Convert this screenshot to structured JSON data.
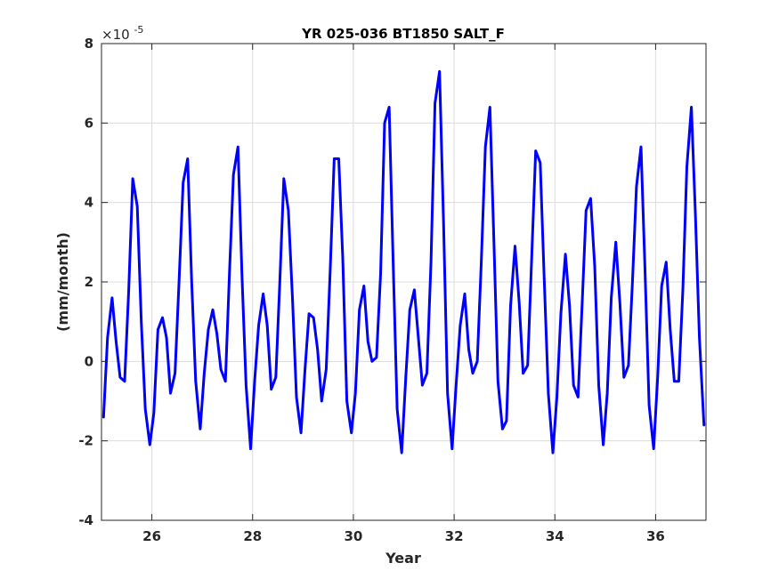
{
  "chart_data": {
    "type": "line",
    "title": "YR 025-036 BT1850 SALT_F",
    "xlabel": "Year",
    "ylabel": "(mm/month)",
    "y_exponent_base": "×10",
    "y_exponent_power": "-5",
    "xlim": [
      25,
      37
    ],
    "ylim": [
      -4,
      8
    ],
    "x_ticks": [
      26,
      28,
      30,
      32,
      34,
      36
    ],
    "x_tick_labels": [
      "26",
      "28",
      "30",
      "32",
      "34",
      "36"
    ],
    "y_ticks": [
      -4,
      -2,
      0,
      2,
      4,
      6,
      8
    ],
    "y_tick_labels": [
      "-4",
      "-2",
      "0",
      "2",
      "4",
      "6",
      "8"
    ],
    "grid": true,
    "series": [
      {
        "color": "#0000ff",
        "x": [
          25.04,
          25.12,
          25.21,
          25.29,
          25.37,
          25.46,
          25.54,
          25.62,
          25.71,
          25.79,
          25.87,
          25.96,
          26.04,
          26.12,
          26.21,
          26.29,
          26.37,
          26.46,
          26.54,
          26.62,
          26.71,
          26.79,
          26.87,
          26.96,
          27.04,
          27.12,
          27.21,
          27.29,
          27.37,
          27.46,
          27.54,
          27.62,
          27.71,
          27.79,
          27.87,
          27.96,
          28.04,
          28.12,
          28.21,
          28.29,
          28.37,
          28.46,
          28.54,
          28.62,
          28.71,
          28.79,
          28.87,
          28.96,
          29.04,
          29.12,
          29.21,
          29.29,
          29.37,
          29.46,
          29.54,
          29.62,
          29.71,
          29.79,
          29.87,
          29.96,
          30.04,
          30.12,
          30.21,
          30.29,
          30.37,
          30.46,
          30.54,
          30.62,
          30.71,
          30.79,
          30.87,
          30.96,
          31.04,
          31.12,
          31.21,
          31.29,
          31.37,
          31.46,
          31.54,
          31.62,
          31.71,
          31.79,
          31.87,
          31.96,
          32.04,
          32.12,
          32.21,
          32.29,
          32.37,
          32.46,
          32.54,
          32.62,
          32.71,
          32.79,
          32.87,
          32.96,
          33.04,
          33.12,
          33.21,
          33.29,
          33.37,
          33.46,
          33.54,
          33.62,
          33.71,
          33.79,
          33.87,
          33.96,
          34.04,
          34.12,
          34.21,
          34.29,
          34.37,
          34.46,
          34.54,
          34.62,
          34.71,
          34.79,
          34.87,
          34.96,
          35.04,
          35.12,
          35.21,
          35.29,
          35.37,
          35.46,
          35.54,
          35.62,
          35.71,
          35.79,
          35.87,
          35.96,
          36.04,
          36.12,
          36.21,
          36.29,
          36.37,
          36.46,
          36.54,
          36.62,
          36.71,
          36.79,
          36.87,
          36.96
        ],
        "y": [
          -1.4,
          0.6,
          1.6,
          0.5,
          -0.4,
          -0.5,
          1.8,
          4.6,
          3.9,
          1.0,
          -1.2,
          -2.1,
          -1.3,
          0.8,
          1.1,
          0.6,
          -0.8,
          -0.3,
          2.0,
          4.5,
          5.1,
          2.0,
          -0.5,
          -1.7,
          -0.3,
          0.8,
          1.3,
          0.7,
          -0.2,
          -0.5,
          2.2,
          4.7,
          5.4,
          2.1,
          -0.6,
          -2.2,
          -0.5,
          0.9,
          1.7,
          0.9,
          -0.7,
          -0.4,
          2.0,
          4.6,
          3.8,
          1.6,
          -0.9,
          -1.8,
          -0.2,
          1.2,
          1.1,
          0.3,
          -1.0,
          -0.2,
          2.3,
          5.1,
          5.1,
          2.6,
          -1.0,
          -1.8,
          -0.8,
          1.3,
          1.9,
          0.5,
          0.0,
          0.1,
          2.2,
          6.0,
          6.4,
          2.5,
          -1.2,
          -2.3,
          -0.4,
          1.3,
          1.8,
          0.6,
          -0.6,
          -0.3,
          2.5,
          6.5,
          7.3,
          3.5,
          -0.8,
          -2.2,
          -0.6,
          0.9,
          1.7,
          0.3,
          -0.3,
          0.0,
          2.5,
          5.4,
          6.4,
          3.0,
          -0.5,
          -1.7,
          -1.5,
          1.4,
          2.9,
          1.5,
          -0.3,
          -0.1,
          2.6,
          5.3,
          5.0,
          2.0,
          -0.8,
          -2.3,
          -0.9,
          1.2,
          2.7,
          1.4,
          -0.6,
          -0.9,
          1.4,
          3.8,
          4.1,
          2.4,
          -0.6,
          -2.1,
          -0.8,
          1.6,
          3.0,
          1.5,
          -0.4,
          -0.1,
          2.0,
          4.4,
          5.4,
          2.3,
          -1.1,
          -2.2,
          -0.4,
          1.9,
          2.5,
          0.8,
          -0.5,
          -0.5,
          1.8,
          4.9,
          6.4,
          3.7,
          0.6,
          -1.6
        ]
      }
    ]
  }
}
